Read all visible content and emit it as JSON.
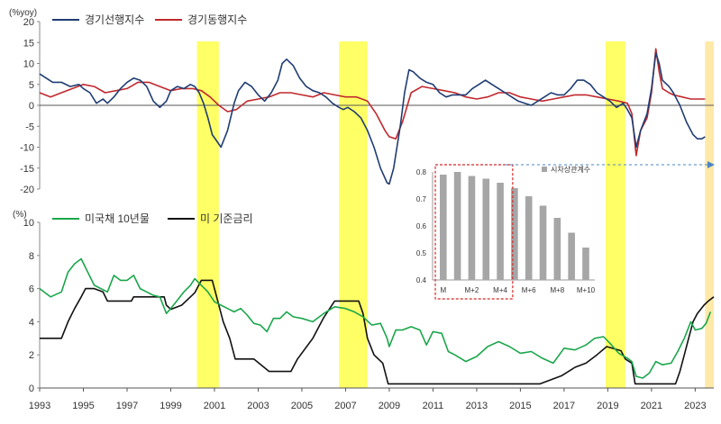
{
  "chart_data": [
    {
      "type": "line",
      "title": "",
      "ylabel": "(%yoy)",
      "ylim": [
        -20,
        20
      ],
      "yticks": [
        20,
        15,
        10,
        5,
        0,
        -5,
        -10,
        -15,
        -20
      ],
      "xlim": [
        1993,
        2023.85
      ],
      "legend_position": "top-left",
      "grid": false,
      "series": [
        {
          "name": "경기선행지수",
          "color": "#1f3c73",
          "x": [
            1993.0,
            1993.3,
            1993.6,
            1994.0,
            1994.4,
            1994.8,
            1995.0,
            1995.3,
            1995.6,
            1995.9,
            1996.1,
            1996.4,
            1996.7,
            1997.0,
            1997.3,
            1997.6,
            1997.9,
            1998.2,
            1998.5,
            1998.8,
            1999.0,
            1999.3,
            1999.6,
            1999.9,
            2000.1,
            2000.3,
            2000.5,
            2000.7,
            2000.9,
            2001.1,
            2001.3,
            2001.6,
            2001.9,
            2002.1,
            2002.4,
            2002.7,
            2003.0,
            2003.3,
            2003.6,
            2003.9,
            2004.1,
            2004.3,
            2004.6,
            2004.9,
            2005.2,
            2005.5,
            2005.8,
            2006.1,
            2006.4,
            2006.7,
            2006.9,
            2007.1,
            2007.4,
            2007.7,
            2008.0,
            2008.3,
            2008.6,
            2008.9,
            2009.0,
            2009.2,
            2009.5,
            2009.7,
            2009.9,
            2010.1,
            2010.4,
            2010.7,
            2011.0,
            2011.3,
            2011.6,
            2011.9,
            2012.2,
            2012.5,
            2012.8,
            2013.1,
            2013.4,
            2013.7,
            2014.0,
            2014.3,
            2014.6,
            2014.9,
            2015.2,
            2015.5,
            2015.8,
            2016.1,
            2016.4,
            2016.7,
            2017.0,
            2017.3,
            2017.6,
            2017.9,
            2018.2,
            2018.5,
            2018.8,
            2019.1,
            2019.4,
            2019.7,
            2019.9,
            2020.1,
            2020.3,
            2020.5,
            2020.8,
            2021.0,
            2021.2,
            2021.35,
            2021.5,
            2021.8,
            2022.0,
            2022.3,
            2022.6,
            2022.9,
            2023.1,
            2023.3,
            2023.45
          ],
          "values": [
            7.5,
            6.5,
            5.5,
            5.5,
            4.5,
            5.0,
            4.0,
            3.0,
            0.5,
            1.5,
            0.5,
            2.0,
            4.0,
            5.5,
            6.5,
            6.0,
            4.5,
            1.0,
            -0.5,
            1.0,
            3.5,
            4.5,
            4.0,
            5.0,
            4.5,
            3.0,
            0.5,
            -3.0,
            -7.0,
            -8.5,
            -10.0,
            -6.0,
            0.5,
            3.5,
            5.5,
            4.5,
            2.5,
            1.0,
            3.0,
            6.0,
            10.0,
            11.0,
            9.5,
            6.5,
            4.5,
            3.5,
            3.0,
            2.0,
            0.5,
            -0.5,
            -1.0,
            -0.5,
            -1.5,
            -3.0,
            -6.0,
            -10.0,
            -15.0,
            -18.5,
            -18.8,
            -15.0,
            -5.0,
            3.0,
            8.5,
            8.0,
            6.5,
            5.5,
            5.0,
            3.0,
            2.0,
            2.5,
            2.5,
            2.5,
            4.0,
            5.0,
            6.0,
            5.0,
            4.0,
            3.0,
            2.0,
            1.0,
            0.5,
            0.0,
            1.0,
            2.0,
            3.0,
            2.5,
            2.5,
            4.0,
            6.0,
            6.0,
            5.0,
            3.0,
            2.0,
            1.0,
            -0.5,
            0.5,
            -1.0,
            -3.0,
            -10.0,
            -6.0,
            -2.0,
            4.0,
            12.5,
            10.0,
            6.0,
            4.5,
            3.0,
            0.0,
            -4.0,
            -7.0,
            -8.0,
            -8.0,
            -7.5
          ]
        },
        {
          "name": "경기동행지수",
          "color": "#c0282d",
          "x": [
            1993.0,
            1993.5,
            1994.0,
            1994.5,
            1995.0,
            1995.5,
            1996.0,
            1996.5,
            1997.0,
            1997.5,
            1998.0,
            1998.5,
            1999.0,
            1999.5,
            2000.0,
            2000.4,
            2000.8,
            2001.2,
            2001.6,
            2002.0,
            2002.5,
            2003.0,
            2003.5,
            2004.0,
            2004.5,
            2005.0,
            2005.5,
            2006.0,
            2006.5,
            2007.0,
            2007.5,
            2008.0,
            2008.4,
            2008.8,
            2009.0,
            2009.3,
            2009.6,
            2010.0,
            2010.5,
            2011.0,
            2011.5,
            2012.0,
            2012.5,
            2013.0,
            2013.5,
            2014.0,
            2014.5,
            2015.0,
            2015.5,
            2016.0,
            2016.5,
            2017.0,
            2017.5,
            2018.0,
            2018.5,
            2019.0,
            2019.5,
            2019.9,
            2020.1,
            2020.3,
            2020.5,
            2020.8,
            2021.0,
            2021.2,
            2021.35,
            2021.5,
            2021.8,
            2022.0,
            2022.4,
            2022.8,
            2023.1,
            2023.45
          ],
          "values": [
            3.0,
            2.0,
            3.0,
            4.0,
            5.0,
            4.5,
            3.0,
            3.5,
            4.0,
            5.5,
            5.5,
            4.5,
            3.5,
            4.0,
            4.0,
            3.5,
            2.0,
            0.0,
            -1.5,
            -1.0,
            1.0,
            1.5,
            2.0,
            3.0,
            3.0,
            2.5,
            2.0,
            3.0,
            2.5,
            2.0,
            2.0,
            1.0,
            -2.0,
            -6.0,
            -7.5,
            -8.0,
            -4.0,
            3.0,
            4.5,
            4.0,
            3.5,
            3.0,
            2.0,
            1.5,
            2.0,
            3.0,
            3.0,
            2.0,
            1.5,
            1.0,
            1.5,
            2.0,
            2.5,
            2.5,
            2.0,
            1.5,
            1.0,
            0.5,
            -2.0,
            -12.0,
            -6.0,
            -3.0,
            3.0,
            13.5,
            8.0,
            4.0,
            3.0,
            2.5,
            2.0,
            1.5,
            1.5,
            1.5
          ]
        }
      ],
      "shaded_periods": [
        [
          2000.2,
          2001.2
        ],
        [
          2006.7,
          2008.0
        ],
        [
          2018.9,
          2019.8
        ],
        [
          2023.45,
          2023.85
        ]
      ],
      "shaded_color": "#ffff66",
      "shaded_color_latest": "#ffe9a8"
    },
    {
      "type": "line",
      "title": "",
      "ylabel": "(%)",
      "ylim": [
        0,
        10
      ],
      "yticks": [
        10,
        8,
        6,
        4,
        2,
        0
      ],
      "xticks": [
        "1993",
        "1995",
        "1997",
        "1999",
        "2001",
        "2003",
        "2005",
        "2007",
        "2009",
        "2011",
        "2013",
        "2015",
        "2017",
        "2019",
        "2021",
        "2023"
      ],
      "xlim": [
        1993,
        2023.85
      ],
      "legend_position": "top-left",
      "grid": false,
      "series": [
        {
          "name": "미국채 10년물",
          "color": "#1aa64b",
          "x": [
            1993.0,
            1993.5,
            1994.0,
            1994.3,
            1994.6,
            1994.9,
            1995.2,
            1995.5,
            1995.8,
            1996.1,
            1996.4,
            1996.7,
            1997.0,
            1997.3,
            1997.6,
            1997.9,
            1998.2,
            1998.5,
            1998.8,
            1999.0,
            1999.3,
            1999.6,
            1999.9,
            2000.1,
            2000.4,
            2000.7,
            2001.0,
            2001.3,
            2001.6,
            2001.9,
            2002.2,
            2002.5,
            2002.8,
            2003.1,
            2003.4,
            2003.7,
            2004.0,
            2004.3,
            2004.6,
            2005.0,
            2005.5,
            2006.0,
            2006.5,
            2007.0,
            2007.4,
            2007.8,
            2008.2,
            2008.6,
            2008.9,
            2009.0,
            2009.3,
            2009.6,
            2010.0,
            2010.4,
            2010.7,
            2011.0,
            2011.4,
            2011.7,
            2012.0,
            2012.5,
            2013.0,
            2013.5,
            2014.0,
            2014.5,
            2015.0,
            2015.5,
            2016.0,
            2016.5,
            2017.0,
            2017.5,
            2018.0,
            2018.4,
            2018.8,
            2019.1,
            2019.5,
            2019.9,
            2020.1,
            2020.3,
            2020.6,
            2020.9,
            2021.2,
            2021.5,
            2021.9,
            2022.2,
            2022.5,
            2022.8,
            2023.0,
            2023.3,
            2023.5,
            2023.7
          ],
          "values": [
            6.0,
            5.5,
            5.8,
            7.0,
            7.5,
            7.8,
            7.0,
            6.2,
            6.0,
            5.8,
            6.8,
            6.5,
            6.5,
            6.8,
            6.0,
            5.8,
            5.6,
            5.5,
            4.5,
            4.8,
            5.3,
            5.8,
            6.2,
            6.6,
            6.2,
            5.8,
            5.2,
            5.0,
            4.8,
            4.6,
            4.8,
            4.4,
            3.9,
            3.8,
            3.4,
            4.2,
            4.2,
            4.6,
            4.3,
            4.2,
            4.0,
            4.5,
            4.9,
            4.8,
            4.6,
            4.3,
            3.8,
            3.9,
            3.0,
            2.5,
            3.5,
            3.5,
            3.7,
            3.5,
            2.6,
            3.4,
            3.3,
            2.2,
            2.0,
            1.6,
            1.9,
            2.5,
            2.8,
            2.5,
            2.1,
            2.2,
            1.8,
            1.5,
            2.4,
            2.3,
            2.6,
            3.0,
            3.1,
            2.7,
            2.1,
            1.8,
            1.6,
            0.7,
            0.6,
            0.9,
            1.6,
            1.4,
            1.5,
            2.2,
            3.0,
            4.0,
            3.5,
            3.6,
            3.9,
            4.6
          ]
        },
        {
          "name": "미 기준금리",
          "color": "#111111",
          "x": [
            1993.0,
            1994.0,
            1994.3,
            1994.6,
            1994.9,
            1995.1,
            1995.5,
            1995.9,
            1996.1,
            1997.2,
            1997.3,
            1998.7,
            1998.8,
            1999.0,
            1999.5,
            1999.9,
            2000.1,
            2000.4,
            2000.9,
            2001.1,
            2001.4,
            2001.7,
            2001.95,
            2002.8,
            2003.5,
            2004.5,
            2004.8,
            2005.5,
            2006.0,
            2006.5,
            2007.6,
            2007.8,
            2008.0,
            2008.3,
            2008.7,
            2008.95,
            2015.9,
            2016.9,
            2017.5,
            2018.0,
            2018.5,
            2018.95,
            2019.6,
            2019.8,
            2020.1,
            2020.25,
            2022.1,
            2022.3,
            2022.5,
            2022.7,
            2022.9,
            2023.1,
            2023.4,
            2023.6,
            2023.85
          ],
          "values": [
            3.0,
            3.0,
            4.0,
            4.8,
            5.5,
            6.0,
            6.0,
            5.8,
            5.25,
            5.25,
            5.5,
            5.5,
            5.0,
            4.75,
            5.0,
            5.5,
            5.75,
            6.5,
            6.5,
            5.5,
            4.0,
            3.0,
            1.75,
            1.75,
            1.0,
            1.0,
            1.75,
            3.0,
            4.25,
            5.25,
            5.25,
            4.5,
            3.0,
            2.0,
            1.5,
            0.25,
            0.25,
            0.75,
            1.25,
            1.5,
            2.0,
            2.5,
            2.25,
            1.75,
            1.5,
            0.25,
            0.25,
            1.0,
            2.0,
            3.0,
            4.0,
            4.5,
            5.0,
            5.25,
            5.5
          ]
        }
      ],
      "shaded_periods": [
        [
          2000.2,
          2001.2
        ],
        [
          2006.7,
          2008.0
        ],
        [
          2018.9,
          2019.8
        ],
        [
          2023.45,
          2023.85
        ]
      ]
    },
    {
      "type": "bar",
      "title": "",
      "legend": "시차상관계수",
      "color": "#a6a6a6",
      "categories": [
        "M",
        "M+1",
        "M+2",
        "M+3",
        "M+4",
        "M+5",
        "M+6",
        "M+7",
        "M+8",
        "M+9",
        "M+10"
      ],
      "tick_labels": [
        "M",
        "M+2",
        "M+4",
        "M+6",
        "M+8",
        "M+10"
      ],
      "values": [
        0.79,
        0.8,
        0.785,
        0.775,
        0.76,
        0.74,
        0.71,
        0.675,
        0.63,
        0.575,
        0.52
      ],
      "ylim": [
        0.4,
        0.8
      ],
      "yticks": [
        0.8,
        0.7,
        0.6,
        0.5,
        0.4
      ],
      "highlight_range": [
        "M",
        "M+4"
      ],
      "highlight_color": "#d62728"
    }
  ]
}
